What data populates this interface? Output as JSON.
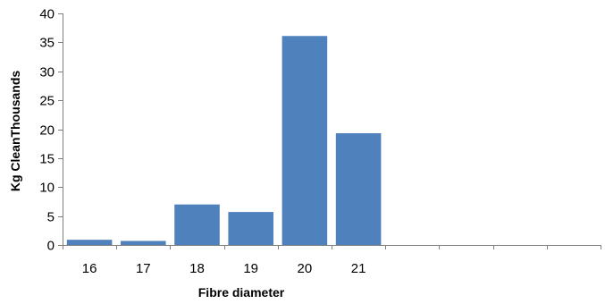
{
  "chart_data": {
    "type": "bar",
    "categories": [
      "16",
      "17",
      "18",
      "19",
      "20",
      "21",
      "",
      "",
      "",
      ""
    ],
    "values": [
      0.9,
      0.7,
      7.0,
      5.7,
      36.1,
      19.3,
      null,
      null,
      null,
      null
    ],
    "xlabel": "Fibre diameter",
    "ylabel": "Kg CleanThousands",
    "ylim": [
      0,
      40
    ],
    "yticks": [
      0,
      5,
      10,
      15,
      20,
      25,
      30,
      35,
      40
    ],
    "grid": false,
    "legend": "none",
    "bar_color": "#4f81bd"
  }
}
